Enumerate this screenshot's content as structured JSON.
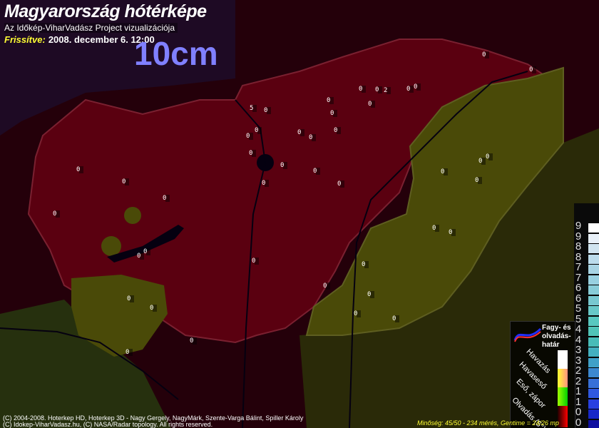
{
  "header": {
    "title": "Magyarország hótérképe",
    "subtitle": "Az Időkép-ViharVadász Project vizualizációja",
    "updated_label": "Frissítve:",
    "updated_value": "2008. december 6. 12:00",
    "depth_label": "10cm"
  },
  "stations": [
    "0",
    "0",
    "0",
    "0",
    "2",
    "0",
    "0",
    "5",
    "0",
    "0",
    "0",
    "0",
    "0",
    "0",
    "0",
    "0",
    "0",
    "0",
    "0",
    "0",
    "0",
    "0",
    "0",
    "0",
    "0",
    "0",
    "0",
    "0",
    "0",
    "0",
    "0",
    "0",
    "0",
    "0",
    "0",
    "0",
    "0",
    "0",
    "0",
    "0",
    "0",
    "0",
    "0",
    "0",
    "0",
    "0"
  ],
  "scale": {
    "labels": [
      "9",
      "9",
      "8",
      "8",
      "7",
      "7",
      "6",
      "6",
      "5",
      "5",
      "4",
      "4",
      "3",
      "3",
      "2",
      "2",
      "1",
      "1",
      "0",
      "0"
    ]
  },
  "legend": {
    "boundary_label": "Fagy- és olvadás-határ",
    "snow": "Havazás",
    "sleet": "Havaseső",
    "rain": "Eső, zápor",
    "melt": "Olvadás (5°)"
  },
  "colors": {
    "snow_free": "#5a0010",
    "melting": "#4a4a08",
    "outside": "#24000a"
  },
  "footer": {
    "line1": "(C) 2004-2008. Hoterkep HD, Hoterkep 3D - Nagy Gergely, NagyMárk, Szente-Varga Bálint, Spiller Károly",
    "line2": "(C) Idokep-ViharVadasz.hu, (C) NASA/Radar topology. All rights reserved.",
    "quality": "Minőség: 45/50 - 234 mérés, Gentime = 24/26 mp"
  }
}
